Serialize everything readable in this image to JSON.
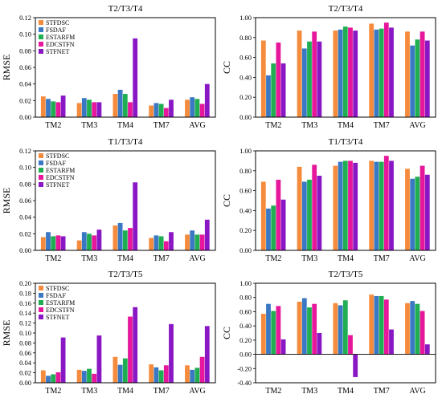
{
  "legend_entries": [
    "STFDSC",
    "FSDAF",
    "ESTARFM",
    "EDCSTFN",
    "STFNET"
  ],
  "colors": [
    "#f58b3c",
    "#3a78c3",
    "#1fae52",
    "#e6179b",
    "#8a17c4"
  ],
  "chart_data": [
    {
      "type": "bar",
      "title": "T2/T3/T4",
      "ylabel": "RMSE",
      "legend": "top-left",
      "categories": [
        "TM2",
        "TM3",
        "TM4",
        "TM7",
        "AVG"
      ],
      "ylim": [
        0,
        0.12
      ],
      "yticks": [
        "0.00",
        "0.02",
        "0.04",
        "0.06",
        "0.08",
        "0.10",
        "0.12"
      ],
      "series": [
        {
          "name": "STFDSC",
          "values": [
            0.025,
            0.017,
            0.028,
            0.014,
            0.021
          ]
        },
        {
          "name": "FSDAF",
          "values": [
            0.022,
            0.023,
            0.033,
            0.017,
            0.024
          ]
        },
        {
          "name": "ESTARFM",
          "values": [
            0.019,
            0.021,
            0.028,
            0.016,
            0.022
          ]
        },
        {
          "name": "EDCSTFN",
          "values": [
            0.018,
            0.018,
            0.018,
            0.011,
            0.016
          ]
        },
        {
          "name": "STFNET",
          "values": [
            0.026,
            0.018,
            0.095,
            0.021,
            0.04
          ]
        }
      ]
    },
    {
      "type": "bar",
      "title": "T2/T3/T4",
      "ylabel": "CC",
      "categories": [
        "TM2",
        "TM3",
        "TM4",
        "TM7",
        "AVG"
      ],
      "ylim": [
        0,
        1.0
      ],
      "yticks": [
        "0.00",
        "0.20",
        "0.40",
        "0.60",
        "0.80",
        "1.00"
      ],
      "series": [
        {
          "name": "STFDSC",
          "values": [
            0.77,
            0.87,
            0.87,
            0.94,
            0.86
          ]
        },
        {
          "name": "FSDAF",
          "values": [
            0.42,
            0.69,
            0.88,
            0.88,
            0.72
          ]
        },
        {
          "name": "ESTARFM",
          "values": [
            0.54,
            0.76,
            0.91,
            0.89,
            0.78
          ]
        },
        {
          "name": "EDCSTFN",
          "values": [
            0.75,
            0.86,
            0.9,
            0.95,
            0.86
          ]
        },
        {
          "name": "STFNET",
          "values": [
            0.54,
            0.76,
            0.87,
            0.9,
            0.77
          ]
        }
      ]
    },
    {
      "type": "bar",
      "title": "T1/T3/T4",
      "ylabel": "RMSE",
      "legend": "top-left",
      "categories": [
        "TM2",
        "TM3",
        "TM4",
        "TM7",
        "AVG"
      ],
      "ylim": [
        0,
        0.12
      ],
      "yticks": [
        "0.00",
        "0.02",
        "0.04",
        "0.06",
        "0.08",
        "0.10",
        "0.12"
      ],
      "series": [
        {
          "name": "STFDSC",
          "values": [
            0.016,
            0.012,
            0.03,
            0.015,
            0.019
          ]
        },
        {
          "name": "FSDAF",
          "values": [
            0.022,
            0.022,
            0.033,
            0.018,
            0.024
          ]
        },
        {
          "name": "ESTARFM",
          "values": [
            0.017,
            0.02,
            0.024,
            0.017,
            0.019
          ]
        },
        {
          "name": "EDCSTFN",
          "values": [
            0.018,
            0.018,
            0.027,
            0.011,
            0.019
          ]
        },
        {
          "name": "STFNET",
          "values": [
            0.017,
            0.025,
            0.082,
            0.022,
            0.037
          ]
        }
      ]
    },
    {
      "type": "bar",
      "title": "T1/T3/T4",
      "ylabel": "CC",
      "categories": [
        "TM2",
        "TM3",
        "TM4",
        "TM7",
        "AVG"
      ],
      "ylim": [
        0,
        1.0
      ],
      "yticks": [
        "0.00",
        "0.20",
        "0.40",
        "0.60",
        "0.80",
        "1.00"
      ],
      "series": [
        {
          "name": "STFDSC",
          "values": [
            0.69,
            0.84,
            0.85,
            0.9,
            0.82
          ]
        },
        {
          "name": "FSDAF",
          "values": [
            0.42,
            0.69,
            0.89,
            0.89,
            0.72
          ]
        },
        {
          "name": "ESTARFM",
          "values": [
            0.45,
            0.71,
            0.9,
            0.89,
            0.74
          ]
        },
        {
          "name": "EDCSTFN",
          "values": [
            0.71,
            0.86,
            0.9,
            0.95,
            0.85
          ]
        },
        {
          "name": "STFNET",
          "values": [
            0.51,
            0.75,
            0.88,
            0.9,
            0.76
          ]
        }
      ]
    },
    {
      "type": "bar",
      "title": "T2/T3/T5",
      "ylabel": "RMSE",
      "legend": "top-left",
      "categories": [
        "TM2",
        "TM3",
        "TM4",
        "TM7",
        "AVG"
      ],
      "ylim": [
        0,
        0.2
      ],
      "yticks": [
        "0.00",
        "0.02",
        "0.04",
        "0.06",
        "0.08",
        "0.10",
        "0.12",
        "0.14",
        "0.16",
        "0.18",
        "0.20"
      ],
      "series": [
        {
          "name": "STFDSC",
          "values": [
            0.025,
            0.026,
            0.052,
            0.037,
            0.035
          ]
        },
        {
          "name": "FSDAF",
          "values": [
            0.014,
            0.024,
            0.036,
            0.031,
            0.026
          ]
        },
        {
          "name": "ESTARFM",
          "values": [
            0.017,
            0.028,
            0.049,
            0.025,
            0.03
          ]
        },
        {
          "name": "EDCSTFN",
          "values": [
            0.021,
            0.018,
            0.133,
            0.035,
            0.052
          ]
        },
        {
          "name": "STFNET",
          "values": [
            0.091,
            0.095,
            0.152,
            0.118,
            0.114
          ]
        }
      ]
    },
    {
      "type": "bar",
      "title": "T2/T3/T5",
      "ylabel": "CC",
      "categories": [
        "TM2",
        "TM3",
        "TM4",
        "TM7",
        "AVG"
      ],
      "ylim": [
        -0.4,
        1.0
      ],
      "yticks": [
        "-0.40",
        "-0.20",
        "0.00",
        "0.20",
        "0.40",
        "0.60",
        "0.80",
        "1.00"
      ],
      "series": [
        {
          "name": "STFDSC",
          "values": [
            0.57,
            0.74,
            0.72,
            0.84,
            0.72
          ]
        },
        {
          "name": "FSDAF",
          "values": [
            0.71,
            0.79,
            0.69,
            0.82,
            0.75
          ]
        },
        {
          "name": "ESTARFM",
          "values": [
            0.61,
            0.66,
            0.76,
            0.82,
            0.71
          ]
        },
        {
          "name": "EDCSTFN",
          "values": [
            0.68,
            0.71,
            0.27,
            0.77,
            0.61
          ]
        },
        {
          "name": "STFNET",
          "values": [
            0.21,
            0.3,
            -0.32,
            0.35,
            0.14
          ]
        }
      ]
    }
  ]
}
